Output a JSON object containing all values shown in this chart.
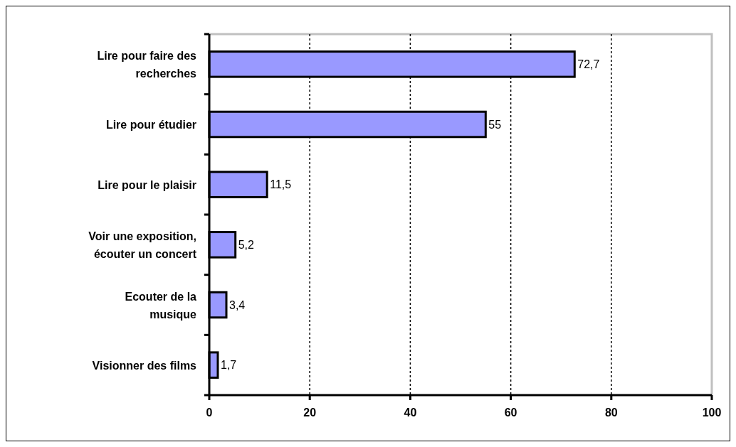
{
  "chart_data": {
    "type": "bar",
    "orientation": "horizontal",
    "categories": [
      "Lire pour faire des recherches",
      "Lire pour étudier",
      "Lire pour le plaisir",
      "Voir une exposition, écouter un concert",
      "Ecouter de la musique",
      "Visionner des films"
    ],
    "values": [
      72.7,
      55,
      11.5,
      5.2,
      3.4,
      1.7
    ],
    "value_labels": [
      "72,7",
      "55",
      "11,5",
      "5,2",
      "3,4",
      "1,7"
    ],
    "color": "#9999ff",
    "xlim": [
      0,
      100
    ],
    "xticks": [
      0,
      20,
      40,
      60,
      80,
      100
    ],
    "grid": "x"
  }
}
